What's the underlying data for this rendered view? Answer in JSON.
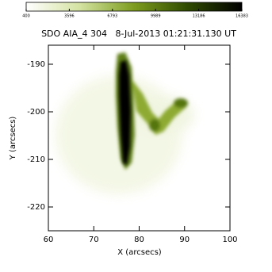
{
  "chart_data": {
    "type": "image",
    "title": "SDO AIA_4 304   8-Jul-2013 01:21:31.130 UT",
    "x_label": "X (arcsecs)",
    "y_label": "Y (arcsecs)",
    "xlim": [
      60,
      100
    ],
    "xticks": [
      60,
      70,
      80,
      90,
      100
    ],
    "ylim": [
      -225,
      -186
    ],
    "yticks": [
      -190,
      -200,
      -210,
      -220
    ],
    "colorbar": {
      "clim": [
        400,
        16383
      ],
      "ticks": [
        400,
        3596,
        6793,
        9989,
        13186,
        16383
      ],
      "colormap": [
        "#ffffff",
        "#d3e2a0",
        "#7d9c1e",
        "#2f4a00",
        "#000000"
      ]
    }
  }
}
